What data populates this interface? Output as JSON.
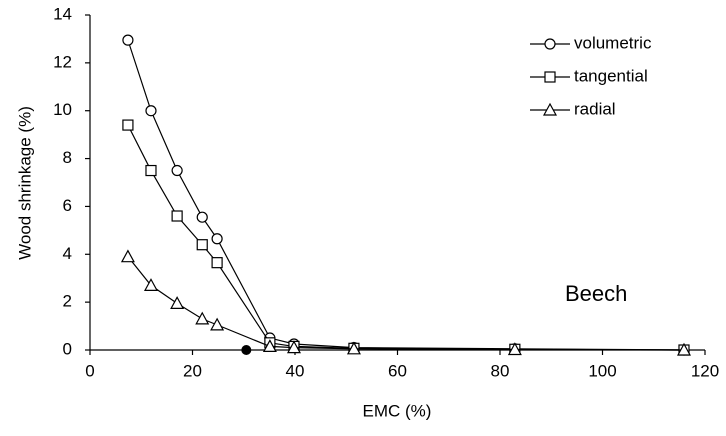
{
  "chart_data": {
    "type": "line",
    "x_label": "EMC (%)",
    "y_label": "Wood shrinkage (%)",
    "annotation": "Beech",
    "xlim": [
      0,
      120
    ],
    "xticks": [
      0,
      20,
      40,
      60,
      80,
      100,
      120
    ],
    "ylim": [
      0,
      14
    ],
    "yticks": [
      0,
      2,
      4,
      6,
      8,
      10,
      12,
      14
    ],
    "grid": false,
    "legend": "upper right",
    "x": [
      7.4,
      11.9,
      17,
      21.9,
      24.8,
      35.1,
      39.8,
      51.5,
      82.9,
      115.9
    ],
    "series": [
      {
        "name": "volumetric",
        "color": "#000000",
        "marker": "circle",
        "values": [
          12.95,
          10.0,
          7.5,
          5.55,
          4.65,
          0.5,
          0.25,
          0.1,
          0.05,
          0
        ]
      },
      {
        "name": "tangential",
        "color": "#000000",
        "marker": "square",
        "values": [
          9.4,
          7.5,
          5.6,
          4.4,
          3.65,
          0.3,
          0.15,
          0.07,
          0.03,
          0
        ]
      },
      {
        "name": "radial",
        "color": "#000000",
        "marker": "triangle",
        "values": [
          3.9,
          2.7,
          1.95,
          1.3,
          1.05,
          0.15,
          0.1,
          0.05,
          0.02,
          0
        ]
      }
    ],
    "point": {
      "x": 30.5,
      "y": 0,
      "color": "#000000"
    }
  }
}
